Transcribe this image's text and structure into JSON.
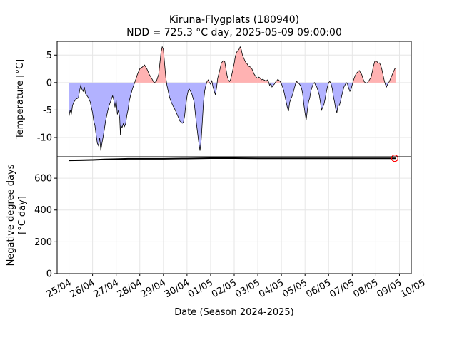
{
  "title_line1": "Kiruna-Flygplats (180940)",
  "title_line2": "NDD = 725.3 °C day, 2025-05-09 09:00:00",
  "x_axis_label": "Date (Season 2024-2025)",
  "colors": {
    "positive_fill": "#ffb2b2",
    "negative_fill": "#b2b2ff",
    "temp_line": "#000000",
    "ndd_line": "#000000",
    "marker": "#ff0000",
    "grid": "#e6e6e6"
  },
  "chart_data": [
    {
      "type": "area",
      "ylabel": "Temperature [°C]",
      "x_range_days": [
        -0.5,
        14.5
      ],
      "ylim": [
        -13.5,
        7.5
      ],
      "yticks": [
        -10,
        -5,
        0,
        5
      ],
      "grid": true,
      "fill_rule": "red above 0 °C, blue below 0 °C",
      "series": [
        {
          "points_day_temp": [
            [
              0.0,
              -6.2
            ],
            [
              0.05,
              -5.0
            ],
            [
              0.1,
              -5.8
            ],
            [
              0.15,
              -4.2
            ],
            [
              0.2,
              -3.6
            ],
            [
              0.3,
              -3.0
            ],
            [
              0.4,
              -2.8
            ],
            [
              0.45,
              -1.5
            ],
            [
              0.5,
              -0.5
            ],
            [
              0.55,
              -1.2
            ],
            [
              0.6,
              -1.6
            ],
            [
              0.65,
              -0.8
            ],
            [
              0.7,
              -2.0
            ],
            [
              0.8,
              -2.6
            ],
            [
              0.9,
              -3.5
            ],
            [
              1.0,
              -5.5
            ],
            [
              1.05,
              -7.0
            ],
            [
              1.1,
              -7.8
            ],
            [
              1.15,
              -9.5
            ],
            [
              1.2,
              -11.0
            ],
            [
              1.25,
              -11.5
            ],
            [
              1.3,
              -10.0
            ],
            [
              1.35,
              -12.4
            ],
            [
              1.4,
              -11.0
            ],
            [
              1.45,
              -9.8
            ],
            [
              1.5,
              -8.5
            ],
            [
              1.55,
              -7.0
            ],
            [
              1.6,
              -6.0
            ],
            [
              1.65,
              -5.0
            ],
            [
              1.7,
              -4.2
            ],
            [
              1.75,
              -3.6
            ],
            [
              1.8,
              -3.0
            ],
            [
              1.85,
              -2.4
            ],
            [
              1.9,
              -3.2
            ],
            [
              1.95,
              -4.5
            ],
            [
              2.0,
              -3.2
            ],
            [
              2.05,
              -5.8
            ],
            [
              2.1,
              -5.0
            ],
            [
              2.15,
              -6.5
            ],
            [
              2.18,
              -9.5
            ],
            [
              2.2,
              -7.8
            ],
            [
              2.25,
              -8.2
            ],
            [
              2.3,
              -7.5
            ],
            [
              2.35,
              -8.0
            ],
            [
              2.4,
              -7.5
            ],
            [
              2.45,
              -6.0
            ],
            [
              2.5,
              -5.0
            ],
            [
              2.55,
              -3.5
            ],
            [
              2.6,
              -2.5
            ],
            [
              2.7,
              -1.0
            ],
            [
              2.8,
              0.2
            ],
            [
              2.9,
              1.5
            ],
            [
              3.0,
              2.5
            ],
            [
              3.1,
              2.8
            ],
            [
              3.2,
              3.2
            ],
            [
              3.3,
              2.5
            ],
            [
              3.4,
              1.5
            ],
            [
              3.5,
              0.8
            ],
            [
              3.6,
              0.0
            ],
            [
              3.7,
              0.2
            ],
            [
              3.8,
              1.5
            ],
            [
              3.85,
              3.5
            ],
            [
              3.9,
              5.5
            ],
            [
              3.95,
              6.5
            ],
            [
              4.0,
              6.0
            ],
            [
              4.05,
              3.5
            ],
            [
              4.1,
              1.0
            ],
            [
              4.15,
              -0.5
            ],
            [
              4.2,
              -1.5
            ],
            [
              4.25,
              -2.5
            ],
            [
              4.3,
              -3.2
            ],
            [
              4.4,
              -4.2
            ],
            [
              4.5,
              -5.0
            ],
            [
              4.6,
              -6.0
            ],
            [
              4.7,
              -7.0
            ],
            [
              4.8,
              -7.4
            ],
            [
              4.85,
              -7.2
            ],
            [
              4.9,
              -6.0
            ],
            [
              4.95,
              -4.0
            ],
            [
              5.0,
              -2.5
            ],
            [
              5.05,
              -1.5
            ],
            [
              5.1,
              -1.2
            ],
            [
              5.15,
              -1.6
            ],
            [
              5.2,
              -2.0
            ],
            [
              5.3,
              -3.5
            ],
            [
              5.4,
              -7.5
            ],
            [
              5.5,
              -11.0
            ],
            [
              5.55,
              -12.4
            ],
            [
              5.6,
              -10.5
            ],
            [
              5.65,
              -7.0
            ],
            [
              5.7,
              -3.5
            ],
            [
              5.75,
              -1.5
            ],
            [
              5.8,
              -0.5
            ],
            [
              5.85,
              0.2
            ],
            [
              5.9,
              0.5
            ],
            [
              5.95,
              0.0
            ],
            [
              6.0,
              -0.3
            ],
            [
              6.05,
              0.4
            ],
            [
              6.1,
              -0.8
            ],
            [
              6.15,
              -1.5
            ],
            [
              6.2,
              -2.2
            ],
            [
              6.25,
              -1.0
            ],
            [
              6.3,
              0.8
            ],
            [
              6.4,
              2.5
            ],
            [
              6.45,
              3.5
            ],
            [
              6.5,
              3.8
            ],
            [
              6.55,
              4.0
            ],
            [
              6.6,
              3.8
            ],
            [
              6.65,
              2.5
            ],
            [
              6.7,
              1.2
            ],
            [
              6.75,
              0.5
            ],
            [
              6.8,
              0.2
            ],
            [
              6.85,
              0.6
            ],
            [
              6.9,
              1.5
            ],
            [
              7.0,
              3.5
            ],
            [
              7.05,
              4.8
            ],
            [
              7.1,
              5.5
            ],
            [
              7.15,
              5.8
            ],
            [
              7.2,
              6.0
            ],
            [
              7.25,
              6.5
            ],
            [
              7.3,
              6.0
            ],
            [
              7.35,
              5.0
            ],
            [
              7.4,
              4.5
            ],
            [
              7.45,
              4.0
            ],
            [
              7.5,
              3.6
            ],
            [
              7.55,
              3.4
            ],
            [
              7.6,
              3.0
            ],
            [
              7.7,
              2.8
            ],
            [
              7.75,
              2.5
            ],
            [
              7.8,
              2.0
            ],
            [
              7.85,
              1.5
            ],
            [
              7.9,
              1.2
            ],
            [
              7.95,
              0.9
            ],
            [
              8.0,
              0.8
            ],
            [
              8.05,
              1.0
            ],
            [
              8.1,
              0.8
            ],
            [
              8.15,
              0.5
            ],
            [
              8.2,
              0.6
            ],
            [
              8.3,
              0.4
            ],
            [
              8.35,
              0.2
            ],
            [
              8.4,
              0.5
            ],
            [
              8.45,
              0.2
            ],
            [
              8.5,
              -0.5
            ],
            [
              8.55,
              -0.2
            ],
            [
              8.6,
              -0.8
            ],
            [
              8.65,
              -0.5
            ],
            [
              8.7,
              -0.3
            ],
            [
              8.75,
              0.1
            ],
            [
              8.8,
              0.3
            ],
            [
              8.85,
              0.6
            ],
            [
              8.9,
              0.4
            ],
            [
              8.95,
              0.2
            ],
            [
              9.0,
              -0.2
            ],
            [
              9.05,
              -0.8
            ],
            [
              9.1,
              -1.5
            ],
            [
              9.15,
              -2.5
            ],
            [
              9.2,
              -3.5
            ],
            [
              9.25,
              -4.5
            ],
            [
              9.3,
              -5.2
            ],
            [
              9.35,
              -3.6
            ],
            [
              9.4,
              -3.0
            ],
            [
              9.45,
              -2.5
            ],
            [
              9.5,
              -1.8
            ],
            [
              9.55,
              -1.0
            ],
            [
              9.6,
              -0.2
            ],
            [
              9.65,
              0.2
            ],
            [
              9.7,
              0.0
            ],
            [
              9.75,
              -0.2
            ],
            [
              9.8,
              -0.5
            ],
            [
              9.85,
              -1.0
            ],
            [
              9.9,
              -2.0
            ],
            [
              9.95,
              -4.0
            ],
            [
              10.0,
              -5.5
            ],
            [
              10.05,
              -6.8
            ],
            [
              10.1,
              -5.0
            ],
            [
              10.15,
              -3.5
            ],
            [
              10.2,
              -2.8
            ],
            [
              10.25,
              -1.5
            ],
            [
              10.3,
              -0.8
            ],
            [
              10.35,
              -0.2
            ],
            [
              10.4,
              0.0
            ],
            [
              10.45,
              -0.5
            ],
            [
              10.5,
              -0.8
            ],
            [
              10.55,
              -1.5
            ],
            [
              10.6,
              -2.2
            ],
            [
              10.65,
              -3.5
            ],
            [
              10.7,
              -5.0
            ],
            [
              10.75,
              -4.5
            ],
            [
              10.8,
              -4.0
            ],
            [
              10.85,
              -3.0
            ],
            [
              10.9,
              -1.8
            ],
            [
              10.95,
              -0.8
            ],
            [
              11.0,
              0.0
            ],
            [
              11.05,
              0.2
            ],
            [
              11.1,
              -0.2
            ],
            [
              11.15,
              -1.0
            ],
            [
              11.2,
              -2.5
            ],
            [
              11.25,
              -3.5
            ],
            [
              11.3,
              -4.8
            ],
            [
              11.35,
              -5.5
            ],
            [
              11.4,
              -4.0
            ],
            [
              11.45,
              -4.2
            ],
            [
              11.5,
              -3.5
            ],
            [
              11.55,
              -2.5
            ],
            [
              11.6,
              -1.6
            ],
            [
              11.65,
              -0.8
            ],
            [
              11.7,
              -0.4
            ],
            [
              11.75,
              0.0
            ],
            [
              11.8,
              -0.3
            ],
            [
              11.85,
              -1.0
            ],
            [
              11.9,
              -1.6
            ],
            [
              11.95,
              -1.2
            ],
            [
              12.0,
              -0.4
            ],
            [
              12.05,
              0.4
            ],
            [
              12.1,
              1.0
            ],
            [
              12.15,
              1.5
            ],
            [
              12.2,
              1.8
            ],
            [
              12.25,
              2.0
            ],
            [
              12.3,
              2.2
            ],
            [
              12.35,
              1.8
            ],
            [
              12.4,
              1.5
            ],
            [
              12.45,
              0.8
            ],
            [
              12.5,
              0.2
            ],
            [
              12.55,
              0.0
            ],
            [
              12.6,
              -0.1
            ],
            [
              12.65,
              0.0
            ],
            [
              12.7,
              0.3
            ],
            [
              12.8,
              1.0
            ],
            [
              12.85,
              2.0
            ],
            [
              12.9,
              3.0
            ],
            [
              12.95,
              3.8
            ],
            [
              13.0,
              4.0
            ],
            [
              13.05,
              3.8
            ],
            [
              13.1,
              3.5
            ],
            [
              13.15,
              3.6
            ],
            [
              13.2,
              3.2
            ],
            [
              13.25,
              2.5
            ],
            [
              13.3,
              1.5
            ],
            [
              13.35,
              0.5
            ],
            [
              13.4,
              -0.3
            ],
            [
              13.45,
              -0.8
            ],
            [
              13.5,
              -0.3
            ],
            [
              13.55,
              0.0
            ],
            [
              13.6,
              0.5
            ],
            [
              13.7,
              1.5
            ],
            [
              13.8,
              2.5
            ],
            [
              13.85,
              2.7
            ]
          ]
        }
      ]
    },
    {
      "type": "line",
      "ylabel_line1": "Negative degree days",
      "ylabel_line2": "[°C day]",
      "x_range_days": [
        -0.5,
        14.5
      ],
      "ylim": [
        0,
        735
      ],
      "yticks": [
        0,
        200,
        400,
        600
      ],
      "grid": true,
      "x_ticks": [
        "25/04",
        "26/04",
        "27/04",
        "28/04",
        "29/04",
        "30/04",
        "01/05",
        "02/05",
        "03/05",
        "04/05",
        "05/05",
        "06/05",
        "07/05",
        "08/05",
        "09/05",
        "10/05"
      ],
      "series": [
        {
          "points_day_ndd": [
            [
              0.0,
              712
            ],
            [
              0.5,
              713
            ],
            [
              1.0,
              715
            ],
            [
              1.5,
              718
            ],
            [
              2.0,
              720
            ],
            [
              2.5,
              722
            ],
            [
              3.0,
              722
            ],
            [
              3.5,
              722
            ],
            [
              4.0,
              722
            ],
            [
              4.5,
              723
            ],
            [
              5.0,
              724
            ],
            [
              5.5,
              725
            ],
            [
              6.0,
              726
            ],
            [
              7.0,
              726
            ],
            [
              8.0,
              725
            ],
            [
              9.0,
              725
            ],
            [
              10.0,
              725
            ],
            [
              11.0,
              725
            ],
            [
              12.0,
              725
            ],
            [
              13.0,
              725
            ],
            [
              13.85,
              725
            ]
          ]
        }
      ],
      "marker_point": [
        13.8,
        725.3
      ]
    }
  ]
}
